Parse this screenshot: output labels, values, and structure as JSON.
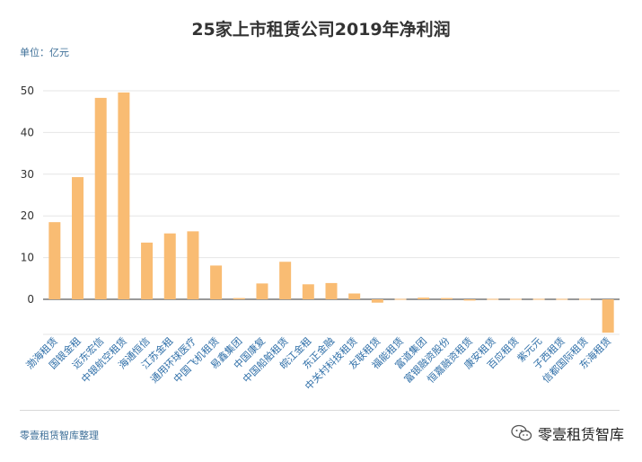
{
  "chart_data": {
    "type": "bar",
    "title": "25家上市租赁公司2019年净利润",
    "unit_label": "单位：亿元",
    "categories": [
      "渤海租赁",
      "国银金租",
      "远东宏信",
      "中银航空租赁",
      "海通恒信",
      "江苏金租",
      "通用环球医疗",
      "中国飞机租赁",
      "易鑫集团",
      "中国康复",
      "中国船舶租赁",
      "皖江金租",
      "东正金融",
      "中关村科技租赁",
      "友联租赁",
      "福能租赁",
      "富道集团",
      "富银融资股份",
      "恒嘉融资租赁",
      "康安租赁",
      "百应租赁",
      "紫元元",
      "子西租赁",
      "信都国际租赁",
      "东海租赁"
    ],
    "values": [
      18.5,
      29.3,
      48.3,
      49.6,
      13.6,
      15.8,
      16.3,
      8.1,
      0.3,
      3.8,
      9.0,
      3.6,
      3.9,
      1.4,
      -0.8,
      0.1,
      0.4,
      0.3,
      -0.3,
      0.1,
      0.1,
      0.1,
      0.1,
      0.1,
      -8.0
    ],
    "ylim": [
      -8,
      52
    ],
    "yticks": [
      "0",
      "10",
      "20",
      "30",
      "40",
      "50"
    ],
    "bar_color": "#f9bc73",
    "grid": true
  },
  "footer": {
    "source": "零壹租赁智库整理",
    "brand": "零壹租赁智库"
  }
}
